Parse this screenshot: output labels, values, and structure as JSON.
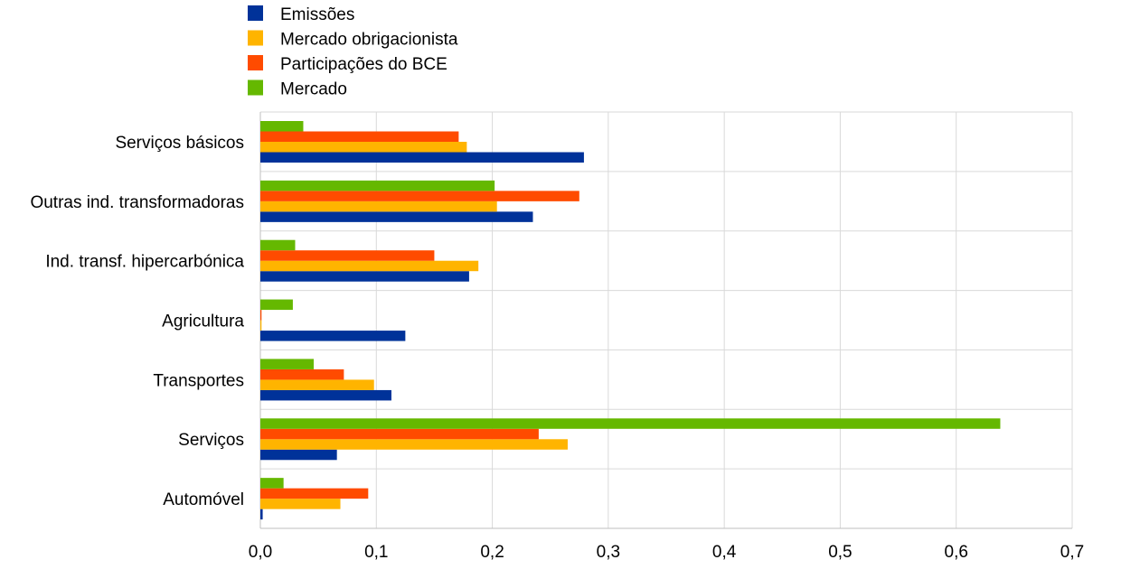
{
  "chart_data": {
    "type": "bar",
    "orientation": "horizontal",
    "title": "",
    "xlabel": "",
    "ylabel": "",
    "categories": [
      "Serviços básicos",
      "Outras ind. transformadoras",
      "Ind. transf. hipercarbónica",
      "Agricultura",
      "Transportes",
      "Serviços",
      "Automóvel"
    ],
    "series": [
      {
        "name": "Emissões",
        "color": "#003299",
        "values": [
          0.279,
          0.235,
          0.18,
          0.125,
          0.113,
          0.066,
          0.002
        ]
      },
      {
        "name": "Mercado obrigacionista",
        "color": "#FFB400",
        "values": [
          0.178,
          0.204,
          0.188,
          0.001,
          0.098,
          0.265,
          0.069
        ]
      },
      {
        "name": "Participações do BCE",
        "color": "#FF4B00",
        "values": [
          0.171,
          0.275,
          0.15,
          0.001,
          0.072,
          0.24,
          0.093
        ]
      },
      {
        "name": "Mercado",
        "color": "#65B800",
        "values": [
          0.037,
          0.202,
          0.03,
          0.028,
          0.046,
          0.638,
          0.02
        ]
      }
    ],
    "xlim": [
      0,
      0.7
    ],
    "xticks": [
      "0,0",
      "0,1",
      "0,2",
      "0,3",
      "0,4",
      "0,5",
      "0,6",
      "0,7"
    ],
    "grid": true,
    "legend_position": "top-left"
  }
}
